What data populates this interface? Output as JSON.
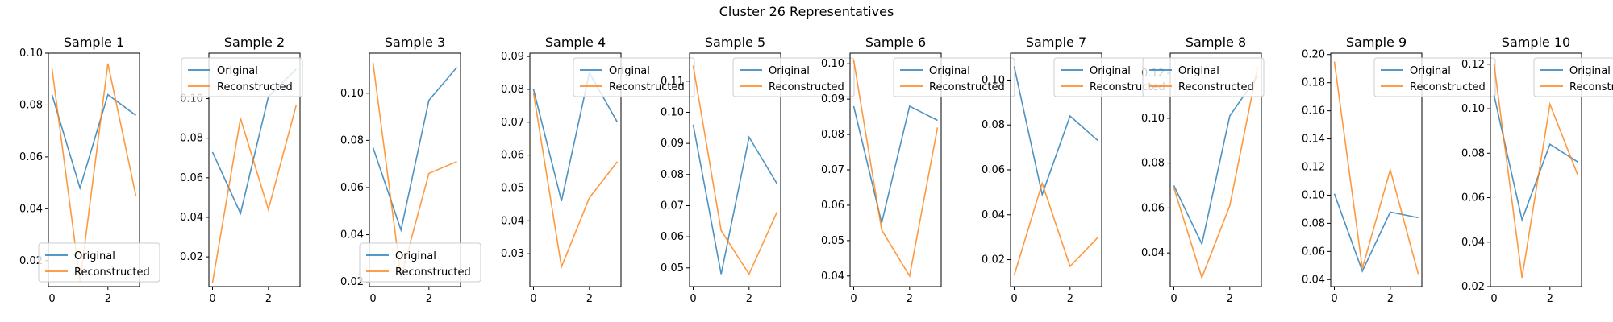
{
  "figure": {
    "title": "Cluster 26 Representatives"
  },
  "colors": {
    "original": "#1f77b4",
    "reconstructed": "#ff7f0e"
  },
  "chart_data": [
    {
      "type": "line",
      "title": "Sample 1",
      "x": [
        0,
        1,
        2,
        3
      ],
      "ylim": [
        0.01,
        0.1
      ],
      "yticks": [
        0.02,
        0.04,
        0.06,
        0.08,
        0.1
      ],
      "ytick_labels": [
        "0.02",
        "0.04",
        "0.06",
        "0.08",
        "0.10"
      ],
      "xticks": [
        0,
        2
      ],
      "series": [
        {
          "name": "Original",
          "values": [
            0.084,
            0.048,
            0.084,
            0.076
          ]
        },
        {
          "name": "Reconstructed",
          "values": [
            0.094,
            0.012,
            0.096,
            0.045
          ]
        }
      ],
      "legend": "lower-left"
    },
    {
      "type": "line",
      "title": "Sample 2",
      "x": [
        0,
        1,
        2,
        3
      ],
      "ylim": [
        0.005,
        0.123
      ],
      "yticks": [
        0.02,
        0.04,
        0.06,
        0.08,
        0.1
      ],
      "ytick_labels": [
        "0.02",
        "0.04",
        "0.06",
        "0.08",
        "0.10"
      ],
      "xticks": [
        0,
        2
      ],
      "series": [
        {
          "name": "Original",
          "values": [
            0.073,
            0.042,
            0.101,
            0.115
          ]
        },
        {
          "name": "Reconstructed",
          "values": [
            0.007,
            0.09,
            0.044,
            0.097
          ]
        }
      ],
      "legend": "upper-left"
    },
    {
      "type": "line",
      "title": "Sample 3",
      "x": [
        0,
        1,
        2,
        3
      ],
      "ylim": [
        0.018,
        0.117
      ],
      "yticks": [
        0.02,
        0.04,
        0.06,
        0.08,
        0.1
      ],
      "ytick_labels": [
        "0.02",
        "0.04",
        "0.06",
        "0.08",
        "0.10"
      ],
      "xticks": [
        0,
        2
      ],
      "series": [
        {
          "name": "Original",
          "values": [
            0.077,
            0.042,
            0.097,
            0.111
          ]
        },
        {
          "name": "Reconstructed",
          "values": [
            0.113,
            0.022,
            0.066,
            0.071
          ]
        }
      ],
      "legend": "lower-left"
    },
    {
      "type": "line",
      "title": "Sample 4",
      "x": [
        0,
        1,
        2,
        3
      ],
      "ylim": [
        0.02,
        0.091
      ],
      "yticks": [
        0.03,
        0.04,
        0.05,
        0.06,
        0.07,
        0.08,
        0.09
      ],
      "ytick_labels": [
        "0.03",
        "0.04",
        "0.05",
        "0.06",
        "0.07",
        "0.08",
        "0.09"
      ],
      "xticks": [
        0,
        2
      ],
      "series": [
        {
          "name": "Original",
          "values": [
            0.08,
            0.046,
            0.085,
            0.07
          ]
        },
        {
          "name": "Reconstructed",
          "values": [
            0.079,
            0.026,
            0.047,
            0.058
          ]
        }
      ],
      "legend": "upper-right"
    },
    {
      "type": "line",
      "title": "Sample 5",
      "x": [
        0,
        1,
        2,
        3
      ],
      "ylim": [
        0.044,
        0.119
      ],
      "yticks": [
        0.05,
        0.06,
        0.07,
        0.08,
        0.09,
        0.1,
        0.11
      ],
      "ytick_labels": [
        "0.05",
        "0.06",
        "0.07",
        "0.08",
        "0.09",
        "0.10",
        "0.11"
      ],
      "xticks": [
        0,
        2
      ],
      "series": [
        {
          "name": "Original",
          "values": [
            0.096,
            0.048,
            0.092,
            0.077
          ]
        },
        {
          "name": "Reconstructed",
          "values": [
            0.115,
            0.062,
            0.048,
            0.068
          ]
        }
      ],
      "legend": "upper-right"
    },
    {
      "type": "line",
      "title": "Sample 6",
      "x": [
        0,
        1,
        2,
        3
      ],
      "ylim": [
        0.037,
        0.103
      ],
      "yticks": [
        0.04,
        0.05,
        0.06,
        0.07,
        0.08,
        0.09,
        0.1
      ],
      "ytick_labels": [
        "0.04",
        "0.05",
        "0.06",
        "0.07",
        "0.08",
        "0.09",
        "0.10"
      ],
      "xticks": [
        0,
        2
      ],
      "series": [
        {
          "name": "Original",
          "values": [
            0.088,
            0.055,
            0.088,
            0.084
          ]
        },
        {
          "name": "Reconstructed",
          "values": [
            0.101,
            0.053,
            0.04,
            0.082
          ]
        }
      ],
      "legend": "upper-right"
    },
    {
      "type": "line",
      "title": "Sample 7",
      "x": [
        0,
        1,
        2,
        3
      ],
      "ylim": [
        0.008,
        0.112
      ],
      "yticks": [
        0.02,
        0.04,
        0.06,
        0.08,
        0.1
      ],
      "ytick_labels": [
        "0.02",
        "0.04",
        "0.06",
        "0.08",
        "0.10"
      ],
      "xticks": [
        0,
        2
      ],
      "series": [
        {
          "name": "Original",
          "values": [
            0.106,
            0.049,
            0.084,
            0.073
          ]
        },
        {
          "name": "Reconstructed",
          "values": [
            0.013,
            0.054,
            0.017,
            0.03
          ]
        }
      ],
      "legend": "upper-right"
    },
    {
      "type": "line",
      "title": "Sample 8",
      "x": [
        0,
        1,
        2,
        3
      ],
      "ylim": [
        0.025,
        0.129
      ],
      "yticks": [
        0.04,
        0.06,
        0.08,
        0.1,
        0.12
      ],
      "ytick_labels": [
        "0.04",
        "0.06",
        "0.08",
        "0.10",
        "0.12"
      ],
      "xticks": [
        0,
        2
      ],
      "series": [
        {
          "name": "Original",
          "values": [
            0.07,
            0.044,
            0.101,
            0.119
          ]
        },
        {
          "name": "Reconstructed",
          "values": [
            0.069,
            0.029,
            0.061,
            0.123
          ]
        }
      ],
      "legend": "upper-left"
    },
    {
      "type": "line",
      "title": "Sample 9",
      "x": [
        0,
        1,
        2,
        3
      ],
      "ylim": [
        0.035,
        0.201
      ],
      "yticks": [
        0.04,
        0.06,
        0.08,
        0.1,
        0.12,
        0.14,
        0.16,
        0.18,
        0.2
      ],
      "ytick_labels": [
        "0.04",
        "0.06",
        "0.08",
        "0.10",
        "0.12",
        "0.14",
        "0.16",
        "0.18",
        "0.20"
      ],
      "xticks": [
        0,
        2
      ],
      "series": [
        {
          "name": "Original",
          "values": [
            0.101,
            0.046,
            0.088,
            0.084
          ]
        },
        {
          "name": "Reconstructed",
          "values": [
            0.195,
            0.048,
            0.118,
            0.044
          ]
        }
      ],
      "legend": "upper-right"
    },
    {
      "type": "line",
      "title": "Sample 10",
      "x": [
        0,
        1,
        2,
        3
      ],
      "ylim": [
        0.02,
        0.125
      ],
      "yticks": [
        0.02,
        0.04,
        0.06,
        0.08,
        0.1,
        0.12
      ],
      "ytick_labels": [
        "0.02",
        "0.04",
        "0.06",
        "0.08",
        "0.10",
        "0.12"
      ],
      "xticks": [
        0,
        2
      ],
      "series": [
        {
          "name": "Original",
          "values": [
            0.106,
            0.05,
            0.084,
            0.076
          ]
        },
        {
          "name": "Reconstructed",
          "values": [
            0.12,
            0.024,
            0.102,
            0.07
          ]
        }
      ],
      "legend": "upper-right"
    }
  ]
}
